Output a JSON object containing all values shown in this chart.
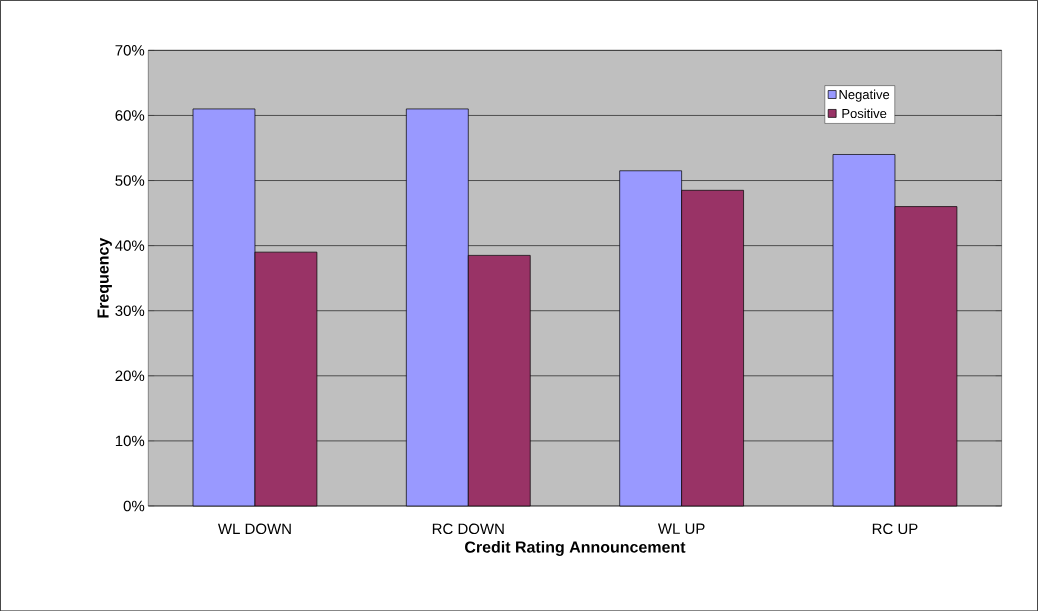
{
  "chart_data": {
    "type": "bar",
    "xlabel": "Credit Rating Announcement",
    "ylabel": "Frequency",
    "categories": [
      "WL DOWN",
      "RC DOWN",
      "WL UP",
      "RC UP"
    ],
    "series": [
      {
        "name": "Negative",
        "color": "#9999ff",
        "values": [
          61,
          61,
          51.5,
          54
        ]
      },
      {
        "name": "Positive",
        "color": "#993366",
        "values": [
          39,
          38.5,
          48.5,
          46
        ]
      }
    ],
    "ylim": [
      0,
      70
    ],
    "yticks": [
      {
        "value": 0,
        "label": "0%"
      },
      {
        "value": 10,
        "label": "10%"
      },
      {
        "value": 20,
        "label": "20%"
      },
      {
        "value": 30,
        "label": "30%"
      },
      {
        "value": 40,
        "label": "40%"
      },
      {
        "value": 50,
        "label": "50%"
      },
      {
        "value": 60,
        "label": "60%"
      },
      {
        "value": 70,
        "label": "70%"
      }
    ],
    "grid": "y",
    "legend": "top right"
  }
}
